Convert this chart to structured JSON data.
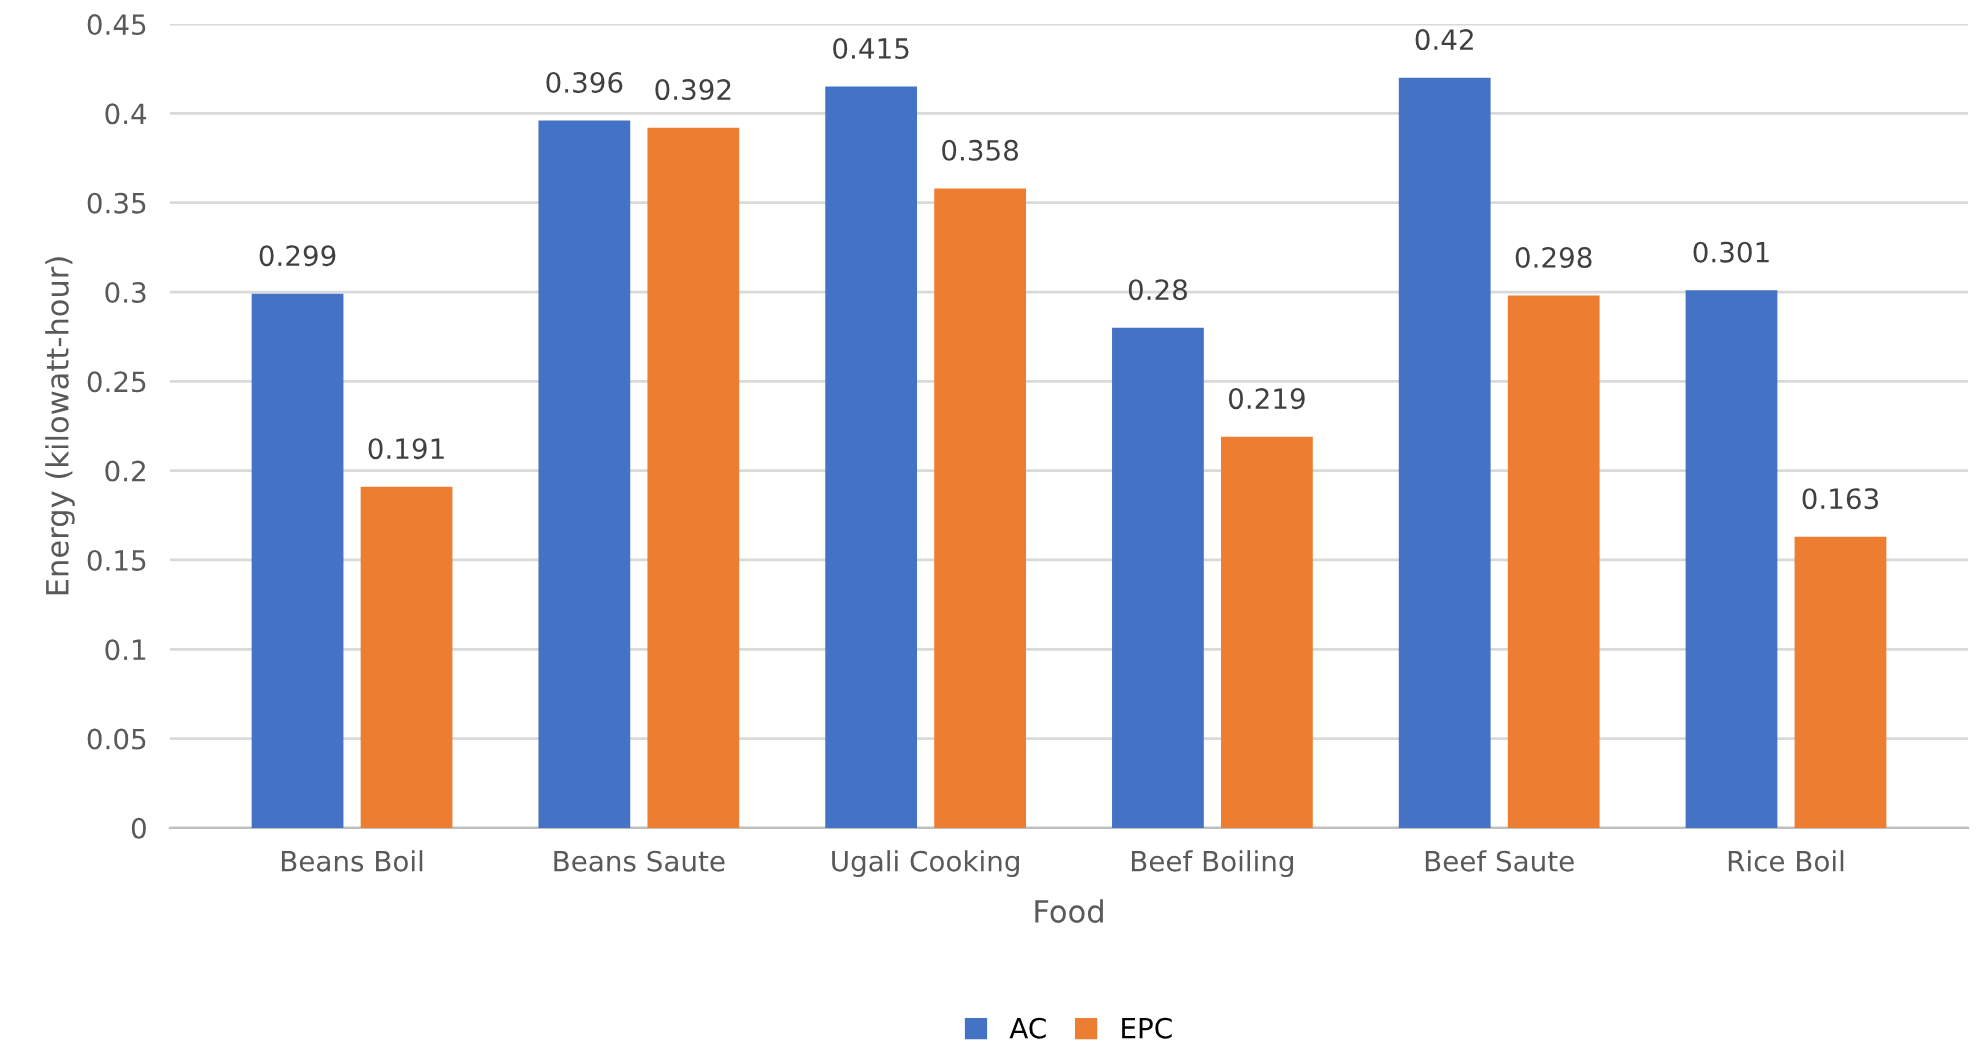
{
  "chart_data": {
    "type": "bar",
    "xlabel": "Food",
    "ylabel": "Energy (kilowatt-hour)",
    "categories": [
      "Beans Boil",
      "Beans Saute",
      "Ugali Cooking",
      "Beef Boiling",
      "Beef Saute",
      "Rice Boil"
    ],
    "series": [
      {
        "name": "AC",
        "color": "#4472c4",
        "values": [
          0.299,
          0.396,
          0.415,
          0.28,
          0.42,
          0.301
        ]
      },
      {
        "name": "EPC",
        "color": "#ed7d31",
        "values": [
          0.191,
          0.392,
          0.358,
          0.219,
          0.298,
          0.163
        ]
      }
    ],
    "ylim": [
      0,
      0.45
    ],
    "yticks": [
      0,
      0.05,
      0.1,
      0.15,
      0.2,
      0.25,
      0.3,
      0.35,
      0.4,
      0.45
    ],
    "grid": "y",
    "legend": "bottom",
    "data_labels": true
  }
}
